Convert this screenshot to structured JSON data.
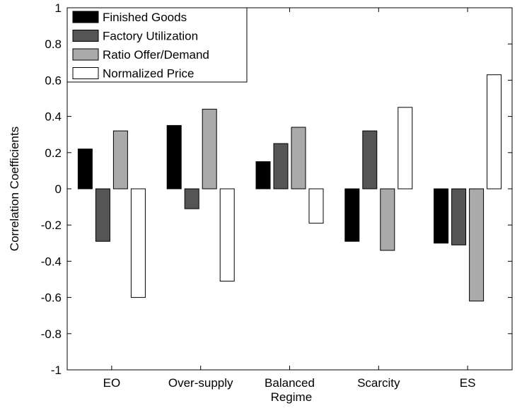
{
  "chart_data": {
    "type": "bar",
    "y_label": "Correlation Coefficients",
    "categories": [
      "EO",
      "Over-supply",
      "Balanced Regime",
      "Scarcity",
      "ES"
    ],
    "series": [
      {
        "name": "Finished Goods",
        "color": "#000000",
        "values": [
          0.22,
          0.35,
          0.15,
          -0.29,
          -0.3
        ]
      },
      {
        "name": "Factory Utilization",
        "color": "#555555",
        "values": [
          -0.29,
          -0.11,
          0.25,
          0.32,
          -0.31
        ]
      },
      {
        "name": "Ratio Offer/Demand",
        "color": "#aaaaaa",
        "values": [
          0.32,
          0.44,
          0.34,
          -0.34,
          -0.62
        ]
      },
      {
        "name": "Normalized Price",
        "color": "#ffffff",
        "values": [
          -0.6,
          -0.51,
          -0.19,
          0.45,
          0.63
        ]
      }
    ],
    "ylim": [
      -1,
      1
    ],
    "yticks": [
      -1,
      -0.8,
      -0.6,
      -0.4,
      -0.2,
      0,
      0.2,
      0.4,
      0.6,
      0.8,
      1
    ],
    "legend": "upper left"
  }
}
